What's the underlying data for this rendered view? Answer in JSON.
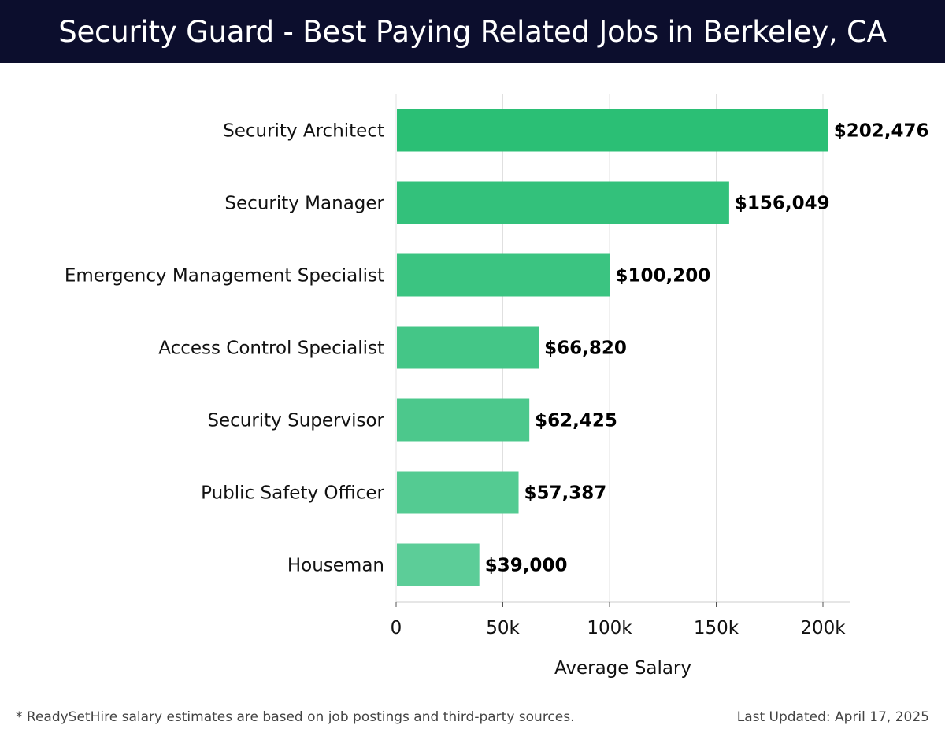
{
  "header": {
    "title": "Security Guard - Best Paying Related Jobs in Berkeley, CA"
  },
  "chart_data": {
    "type": "bar",
    "orientation": "horizontal",
    "title": "Security Guard - Best Paying Related Jobs in Berkeley, CA",
    "categories": [
      "Security Architect",
      "Security Manager",
      "Emergency Management Specialist",
      "Access Control Specialist",
      "Security Supervisor",
      "Public Safety Officer",
      "Houseman"
    ],
    "values": [
      202476,
      156049,
      100200,
      66820,
      62425,
      57387,
      39000
    ],
    "value_labels": [
      "$202,476",
      "$156,049",
      "$100,200",
      "$66,820",
      "$62,425",
      "$57,387",
      "$39,000"
    ],
    "xlabel": "Average Salary",
    "ylabel": "",
    "xlim": [
      0,
      213000
    ],
    "xticks": [
      0,
      50000,
      100000,
      150000,
      200000
    ],
    "xtick_labels": [
      "0",
      "50k",
      "100k",
      "150k",
      "200k"
    ],
    "grid": true,
    "colors": {
      "bar_top": "#2bbf75",
      "bar_bottom": "#5ccd98",
      "grid": "#e0e0e0",
      "axis": "#cccccc",
      "header_bg": "#0c0e2d"
    }
  },
  "footer": {
    "note": "* ReadySetHire salary estimates are based on job postings and third-party sources.",
    "updated": "Last Updated: April 17, 2025"
  }
}
